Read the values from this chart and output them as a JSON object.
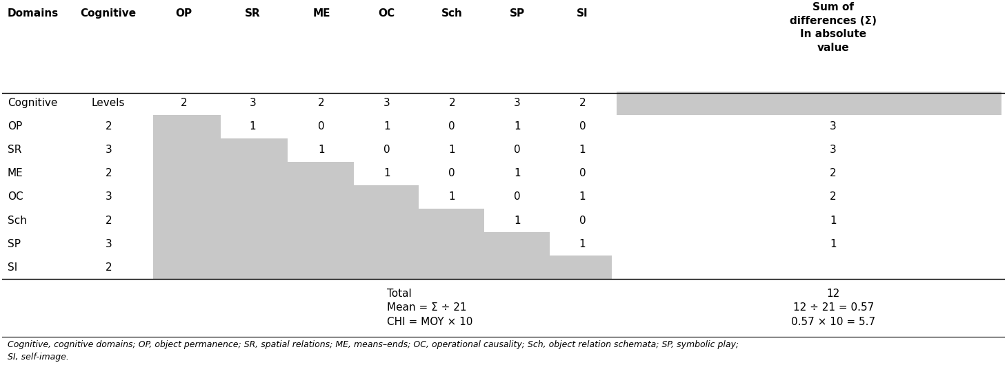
{
  "col_headers": [
    "Domains",
    "Cognitive",
    "OP",
    "SR",
    "ME",
    "OC",
    "Sch",
    "SP",
    "SI",
    "Sum of\ndifferences (Σ)\nIn absolute\nvalue"
  ],
  "row_labels": [
    "Cognitive",
    "OP",
    "SR",
    "ME",
    "OC",
    "Sch",
    "SP",
    "SI"
  ],
  "cognitive_levels": [
    "Levels",
    "2",
    "3",
    "2",
    "3",
    "2",
    "3",
    "2"
  ],
  "matrix": [
    [
      "2",
      "3",
      "2",
      "3",
      "2",
      "3",
      "2"
    ],
    [
      "",
      "1",
      "0",
      "1",
      "0",
      "1",
      "0"
    ],
    [
      "",
      "",
      "1",
      "0",
      "1",
      "0",
      "1"
    ],
    [
      "",
      "",
      "",
      "1",
      "0",
      "1",
      "0"
    ],
    [
      "",
      "",
      "",
      "",
      "1",
      "0",
      "1"
    ],
    [
      "",
      "",
      "",
      "",
      "",
      "1",
      "0"
    ],
    [
      "",
      "",
      "",
      "",
      "",
      "",
      "1"
    ],
    [
      "",
      "",
      "",
      "",
      "",
      "",
      ""
    ]
  ],
  "sum_col": [
    "",
    "3",
    "3",
    "2",
    "2",
    "1",
    "1",
    ""
  ],
  "gray_color": "#C8C8C8",
  "total_text": "Total",
  "mean_text": "Mean = Σ ÷ 21",
  "chi_text": "CHI = MOY × 10",
  "total_value": "12",
  "mean_value": "12 ÷ 21 = 0.57",
  "chi_value": "0.57 × 10 = 5.7",
  "footnote": "Cognitive, cognitive domains; OP, object permanence; SR, spatial relations; ME, means–ends; OC, operational causality; Sch, object relation schemata; SP, symbolic play;\nSI, self-image.",
  "bg_color": "#FFFFFF"
}
